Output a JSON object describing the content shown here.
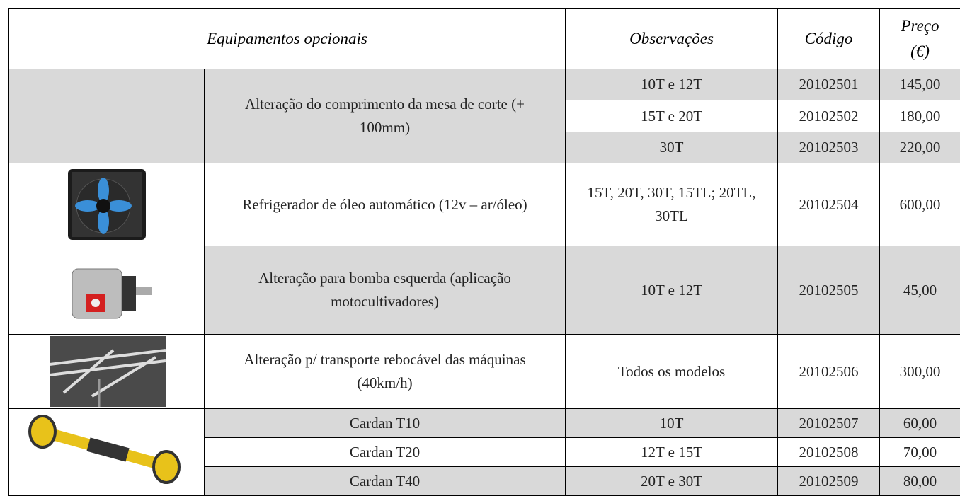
{
  "header": {
    "equipment": "Equipamentos opcionais",
    "observations": "Observações",
    "code": "Código",
    "price": [
      "Preço",
      "(€)"
    ]
  },
  "groups": [
    {
      "description": "Alteração do comprimento da mesa de corte (+ 100mm)",
      "items": [
        {
          "observations": "10T e 12T",
          "code": "20102501",
          "price": "145,00"
        },
        {
          "observations": "15T e 20T",
          "code": "20102502",
          "price": "180,00"
        },
        {
          "observations": "30T",
          "code": "20102503",
          "price": "220,00"
        }
      ]
    },
    {
      "description": "Refrigerador de óleo automático (12v – ar/óleo)",
      "items": [
        {
          "observations": "15T, 20T, 30T, 15TL; 20TL, 30TL",
          "code": "20102504",
          "price": "600,00"
        }
      ]
    },
    {
      "description": "Alteração para bomba esquerda (aplicação motocultivadores)",
      "items": [
        {
          "observations": "10T e 12T",
          "code": "20102505",
          "price": "45,00"
        }
      ]
    },
    {
      "description": "Alteração p/ transporte rebocável das máquinas (40km/h)",
      "items": [
        {
          "observations": "Todos os modelos",
          "code": "20102506",
          "price": "300,00"
        }
      ]
    },
    {
      "descriptions": [
        "Cardan T10",
        "Cardan T20",
        "Cardan T40"
      ],
      "items": [
        {
          "observations": "10T",
          "code": "20102507",
          "price": "60,00"
        },
        {
          "observations": "12T e 15T",
          "code": "20102508",
          "price": "70,00"
        },
        {
          "observations": "20T e 30T",
          "code": "20102509",
          "price": "80,00"
        }
      ]
    }
  ]
}
